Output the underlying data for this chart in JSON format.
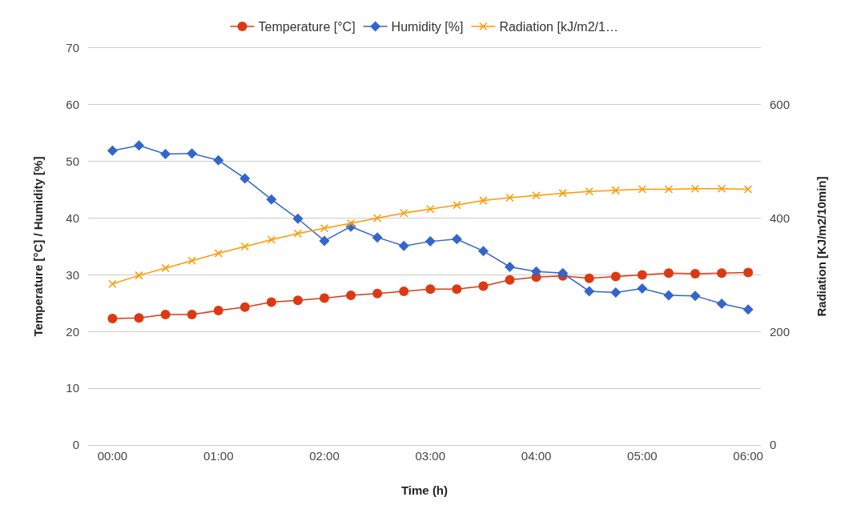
{
  "chart_data": {
    "type": "line",
    "xlabel": "Time (h)",
    "ylabel": "Temperature [°C] / Humidity [%]",
    "y2label": "Radiation [KJ/m2/10min]",
    "x": [
      0,
      0.25,
      0.5,
      0.75,
      1,
      1.25,
      1.5,
      1.75,
      2,
      2.25,
      2.5,
      2.75,
      3,
      3.25,
      3.5,
      3.75,
      4,
      4.25,
      4.5,
      4.75,
      5,
      5.25,
      5.5,
      5.75,
      6
    ],
    "xlim": [
      -0.23,
      6.12
    ],
    "xticks": [
      {
        "value": 0,
        "label": "00:00"
      },
      {
        "value": 1,
        "label": "01:00"
      },
      {
        "value": 2,
        "label": "02:00"
      },
      {
        "value": 3,
        "label": "03:00"
      },
      {
        "value": 4,
        "label": "04:00"
      },
      {
        "value": 5,
        "label": "05:00"
      },
      {
        "value": 6,
        "label": "06:00"
      }
    ],
    "ylim": [
      0,
      70
    ],
    "yticks": [
      0,
      10,
      20,
      30,
      40,
      50,
      60,
      70
    ],
    "y2lim": [
      0,
      700
    ],
    "y2ticks": [
      0,
      200,
      400,
      600
    ],
    "grid": "y",
    "legend": "top",
    "series": [
      {
        "name": "Temperature [°C]",
        "color": "#dc3912",
        "marker": "circle",
        "values": [
          22.3,
          22.4,
          23.0,
          23.0,
          23.7,
          24.3,
          25.2,
          25.5,
          25.9,
          26.4,
          26.7,
          27.1,
          27.5,
          27.5,
          28.0,
          29.1,
          29.6,
          29.8,
          29.4,
          29.7,
          30.0,
          30.3,
          30.2,
          30.3,
          30.4
        ]
      },
      {
        "name": "Humidity [%]",
        "color": "#3366cc",
        "marker": "diamond",
        "values": [
          51.9,
          52.8,
          51.3,
          51.4,
          50.2,
          47.0,
          43.3,
          39.9,
          36.0,
          38.5,
          36.6,
          35.1,
          35.9,
          36.3,
          34.2,
          31.4,
          30.6,
          30.3,
          27.1,
          26.9,
          27.6,
          26.4,
          26.3,
          24.9,
          23.9
        ]
      },
      {
        "name": "Radiation [kJ/m2/1…",
        "color": "#ff9900",
        "marker": "cross",
        "axis": "y2",
        "values": [
          284,
          299,
          312,
          325,
          338,
          350,
          362,
          373,
          382,
          391,
          400,
          409,
          416,
          423,
          431,
          436,
          440,
          444,
          447,
          449,
          451,
          451,
          452,
          452,
          451
        ]
      }
    ]
  }
}
